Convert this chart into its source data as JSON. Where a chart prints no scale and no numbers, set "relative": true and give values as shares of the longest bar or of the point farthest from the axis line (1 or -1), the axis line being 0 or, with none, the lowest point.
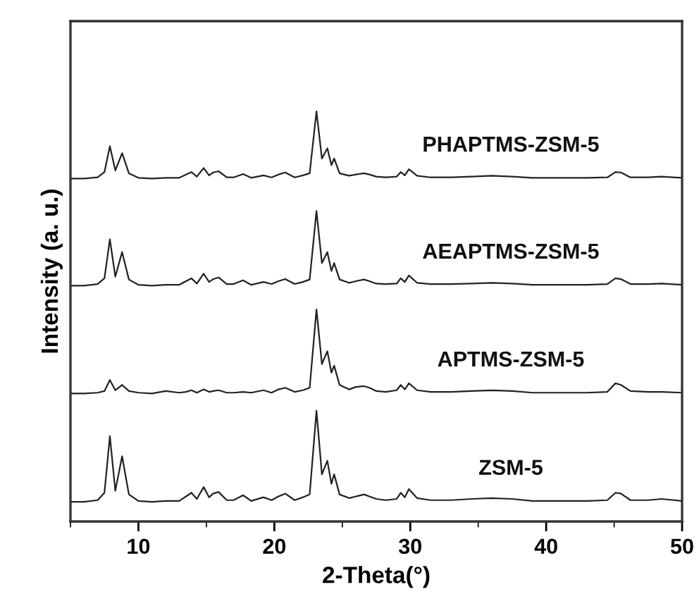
{
  "chart_data": {
    "type": "line",
    "relative": true,
    "xlabel": "2-Theta(°)",
    "ylabel": "Intensity (a. u.)",
    "xlim": [
      5,
      50
    ],
    "xticks": [
      10,
      20,
      30,
      40,
      50
    ],
    "tick_labels": "x",
    "grid": false,
    "legend": false,
    "marker": "none",
    "line_style": "solid",
    "x": [
      5,
      6,
      7,
      7.5,
      7.9,
      8.3,
      8.8,
      9.3,
      10,
      11,
      12,
      13,
      13.5,
      13.9,
      14.3,
      14.8,
      15.2,
      15.5,
      15.9,
      16.5,
      17.0,
      17.7,
      18.3,
      19.2,
      19.8,
      20.3,
      20.8,
      21.5,
      22.1,
      22.6,
      23.1,
      23.5,
      23.9,
      24.2,
      24.4,
      24.8,
      25.5,
      26.0,
      26.6,
      27.0,
      27.5,
      28.2,
      29.0,
      29.3,
      29.6,
      29.9,
      30.5,
      31.5,
      33,
      34.5,
      36.0,
      37.5,
      39,
      41,
      43,
      44.5,
      45.1,
      45.5,
      46.2,
      47.5,
      48.5,
      50
    ],
    "series": [
      {
        "name": "ZSM-5",
        "color": "#222222",
        "values": [
          0.048,
          0.048,
          0.052,
          0.07,
          0.208,
          0.075,
          0.159,
          0.066,
          0.05,
          0.048,
          0.05,
          0.05,
          0.061,
          0.07,
          0.055,
          0.084,
          0.059,
          0.068,
          0.072,
          0.052,
          0.052,
          0.064,
          0.05,
          0.059,
          0.052,
          0.061,
          0.068,
          0.052,
          0.059,
          0.066,
          0.27,
          0.115,
          0.148,
          0.092,
          0.115,
          0.066,
          0.057,
          0.061,
          0.066,
          0.061,
          0.055,
          0.052,
          0.055,
          0.07,
          0.059,
          0.079,
          0.057,
          0.052,
          0.052,
          0.055,
          0.057,
          0.055,
          0.05,
          0.05,
          0.05,
          0.052,
          0.07,
          0.068,
          0.052,
          0.052,
          0.055,
          0.05
        ]
      },
      {
        "name": "APTMS-ZSM-5",
        "color": "#222222",
        "values": [
          0.312,
          0.312,
          0.314,
          0.318,
          0.345,
          0.32,
          0.333,
          0.318,
          0.314,
          0.312,
          0.318,
          0.314,
          0.316,
          0.32,
          0.314,
          0.322,
          0.316,
          0.318,
          0.32,
          0.314,
          0.314,
          0.316,
          0.314,
          0.32,
          0.314,
          0.322,
          0.326,
          0.316,
          0.32,
          0.326,
          0.517,
          0.384,
          0.415,
          0.363,
          0.38,
          0.333,
          0.322,
          0.328,
          0.33,
          0.326,
          0.318,
          0.316,
          0.32,
          0.333,
          0.322,
          0.337,
          0.32,
          0.316,
          0.316,
          0.318,
          0.32,
          0.318,
          0.314,
          0.314,
          0.314,
          0.316,
          0.337,
          0.333,
          0.318,
          0.316,
          0.316,
          0.314
        ]
      },
      {
        "name": "AEAPTMS-ZSM-5",
        "color": "#222222",
        "values": [
          0.575,
          0.575,
          0.579,
          0.593,
          0.688,
          0.597,
          0.657,
          0.59,
          0.577,
          0.575,
          0.577,
          0.577,
          0.586,
          0.593,
          0.58,
          0.604,
          0.584,
          0.591,
          0.595,
          0.579,
          0.579,
          0.588,
          0.577,
          0.584,
          0.579,
          0.586,
          0.591,
          0.579,
          0.584,
          0.59,
          0.757,
          0.63,
          0.657,
          0.611,
          0.63,
          0.59,
          0.582,
          0.586,
          0.59,
          0.586,
          0.58,
          0.579,
          0.58,
          0.593,
          0.584,
          0.6,
          0.582,
          0.579,
          0.579,
          0.58,
          0.582,
          0.58,
          0.577,
          0.577,
          0.577,
          0.579,
          0.593,
          0.591,
          0.579,
          0.579,
          0.58,
          0.577
        ]
      },
      {
        "name": "PHAPTMS-ZSM-5",
        "color": "#222222",
        "values": [
          0.836,
          0.836,
          0.839,
          0.852,
          0.915,
          0.856,
          0.898,
          0.849,
          0.838,
          0.836,
          0.838,
          0.838,
          0.846,
          0.852,
          0.841,
          0.862,
          0.844,
          0.851,
          0.854,
          0.839,
          0.839,
          0.847,
          0.838,
          0.844,
          0.839,
          0.846,
          0.851,
          0.839,
          0.844,
          0.849,
          1.0,
          0.885,
          0.91,
          0.869,
          0.885,
          0.849,
          0.843,
          0.846,
          0.849,
          0.846,
          0.841,
          0.839,
          0.841,
          0.852,
          0.844,
          0.859,
          0.843,
          0.839,
          0.839,
          0.841,
          0.843,
          0.841,
          0.838,
          0.838,
          0.838,
          0.839,
          0.852,
          0.851,
          0.839,
          0.839,
          0.841,
          0.838
        ]
      }
    ]
  }
}
